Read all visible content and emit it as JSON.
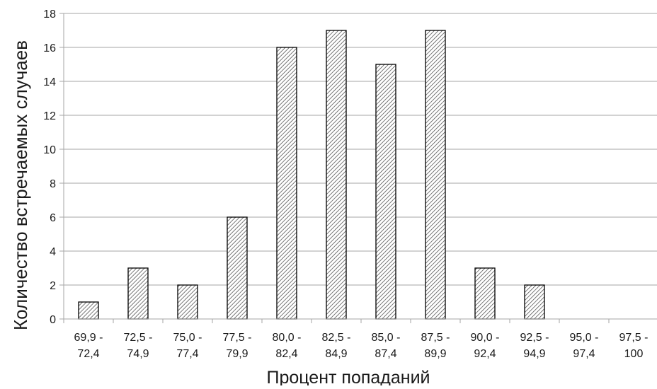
{
  "chart_data": {
    "type": "bar",
    "xlabel": "Процент попаданий",
    "ylabel": "Количество встречаемых случаев",
    "ylim": [
      0,
      18
    ],
    "yticks": [
      0,
      2,
      4,
      6,
      8,
      10,
      12,
      14,
      16,
      18
    ],
    "grid": "horizontal",
    "categories": [
      [
        "69,9 -",
        "72,4"
      ],
      [
        "72,5 -",
        "74,9"
      ],
      [
        "75,0 -",
        "77,4"
      ],
      [
        "77,5 -",
        "79,9"
      ],
      [
        "80,0 -",
        "82,4"
      ],
      [
        "82,5 -",
        "84,9"
      ],
      [
        "85,0 -",
        "87,4"
      ],
      [
        "87,5 -",
        "89,9"
      ],
      [
        "90,0 -",
        "92,4"
      ],
      [
        "92,5 -",
        "94,9"
      ],
      [
        "95,0 -",
        "97,4"
      ],
      [
        "97,5 -",
        "100"
      ]
    ],
    "values": [
      1,
      3,
      2,
      6,
      16,
      17,
      15,
      17,
      3,
      2,
      0,
      0
    ],
    "bar_fill": "diagonal-hatch",
    "colors": {
      "bar_stroke": "#000000",
      "hatch": "#555555",
      "grid": "#a6a6a6",
      "text": "#1a1a1a"
    }
  }
}
